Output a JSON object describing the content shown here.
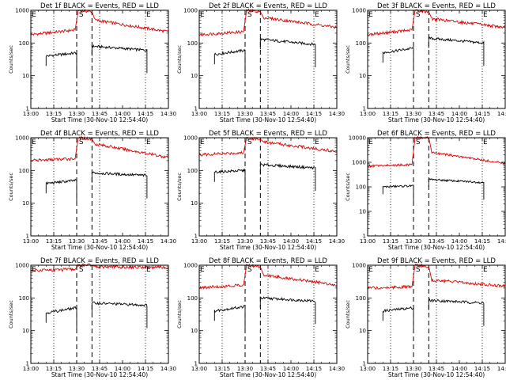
{
  "chart_data": {
    "type": "line",
    "yscale": "log",
    "ylim": [
      1,
      1000
    ],
    "y_ticks": [
      1,
      10,
      100,
      1000
    ],
    "y_tick_labels": [
      "1",
      "10",
      "100",
      "1000"
    ],
    "y_tick_labels_big": [
      "1",
      "10",
      "100",
      "1000",
      "10000"
    ],
    "xlim": [
      "13:00",
      "14:30"
    ],
    "x_ticks": [
      "13:00",
      "13:15",
      "13:30",
      "13:45",
      "14:00",
      "14:15",
      "14:30"
    ],
    "xlabel": "Start Time (30-Nov-10 12:54:40)",
    "ylabel": "Counts/sec",
    "markers": [
      {
        "label": "E",
        "time": "13:00"
      },
      {
        "label": "S",
        "time": "13:31"
      },
      {
        "label": "E",
        "time": "14:15"
      }
    ],
    "dashed_lines": [
      "13:30",
      "13:40"
    ],
    "dotted_lines": [
      "13:15",
      "13:45",
      "14:15"
    ],
    "series_colors": {
      "events": "#000000",
      "lld": "#dd0000"
    },
    "panels": [
      {
        "title": "Det 1f BLACK = Events, RED = LLD",
        "events": {
          "segments": [
            {
              "t": [
                "13:10",
                "13:30"
              ],
              "v": [
                40,
                50
              ]
            },
            {
              "t": [
                "13:40",
                "14:16"
              ],
              "v": [
                80,
                60
              ]
            }
          ]
        },
        "lld": {
          "points": [
            {
              "t": "13:00",
              "v": 180
            },
            {
              "t": "13:29",
              "v": 250
            },
            {
              "t": "13:31",
              "v": 1000
            },
            {
              "t": "13:40",
              "v": 900
            },
            {
              "t": "13:42",
              "v": 500
            },
            {
              "t": "14:30",
              "v": 220
            }
          ]
        }
      },
      {
        "title": "Det 2f BLACK = Events, RED = LLD",
        "events": {
          "segments": [
            {
              "t": [
                "13:10",
                "13:30"
              ],
              "v": [
                45,
                60
              ]
            },
            {
              "t": [
                "13:40",
                "14:16"
              ],
              "v": [
                130,
                90
              ]
            }
          ]
        },
        "lld": {
          "points": [
            {
              "t": "13:00",
              "v": 180
            },
            {
              "t": "13:29",
              "v": 220
            },
            {
              "t": "13:31",
              "v": 1000
            },
            {
              "t": "13:40",
              "v": 900
            },
            {
              "t": "13:42",
              "v": 600
            },
            {
              "t": "14:30",
              "v": 300
            }
          ]
        }
      },
      {
        "title": "Det 3f BLACK = Events, RED = LLD",
        "events": {
          "segments": [
            {
              "t": [
                "13:10",
                "13:30"
              ],
              "v": [
                50,
                70
              ]
            },
            {
              "t": [
                "13:40",
                "14:16"
              ],
              "v": [
                140,
                100
              ]
            }
          ]
        },
        "lld": {
          "points": [
            {
              "t": "13:00",
              "v": 180
            },
            {
              "t": "13:29",
              "v": 250
            },
            {
              "t": "13:31",
              "v": 1000
            },
            {
              "t": "13:40",
              "v": 900
            },
            {
              "t": "13:42",
              "v": 550
            },
            {
              "t": "14:30",
              "v": 300
            }
          ]
        }
      },
      {
        "title": "Det 4f BLACK = Events, RED = LLD",
        "events": {
          "segments": [
            {
              "t": [
                "13:10",
                "13:30"
              ],
              "v": [
                40,
                50
              ]
            },
            {
              "t": [
                "13:40",
                "14:16"
              ],
              "v": [
                85,
                70
              ]
            }
          ]
        },
        "lld": {
          "points": [
            {
              "t": "13:00",
              "v": 200
            },
            {
              "t": "13:29",
              "v": 230
            },
            {
              "t": "13:31",
              "v": 1000
            },
            {
              "t": "13:40",
              "v": 900
            },
            {
              "t": "13:42",
              "v": 650
            },
            {
              "t": "14:30",
              "v": 250
            }
          ]
        }
      },
      {
        "title": "Det 5f BLACK = Events, RED = LLD",
        "events": {
          "segments": [
            {
              "t": [
                "13:10",
                "13:30"
              ],
              "v": [
                90,
                100
              ]
            },
            {
              "t": [
                "13:40",
                "14:16"
              ],
              "v": [
                150,
                120
              ]
            }
          ]
        },
        "lld": {
          "points": [
            {
              "t": "13:00",
              "v": 300
            },
            {
              "t": "13:29",
              "v": 350
            },
            {
              "t": "13:31",
              "v": 1000
            },
            {
              "t": "13:40",
              "v": 900
            },
            {
              "t": "13:42",
              "v": 750
            },
            {
              "t": "14:30",
              "v": 380
            }
          ]
        }
      },
      {
        "title": "Det 6f BLACK = Events, RED = LLD",
        "events": {
          "segments": [
            {
              "t": [
                "13:10",
                "13:30"
              ],
              "v": [
                100,
                110
              ]
            },
            {
              "t": [
                "13:40",
                "14:16"
              ],
              "v": [
                200,
                150
              ]
            }
          ]
        },
        "lld": {
          "points": [
            {
              "t": "13:00",
              "v": 700
            },
            {
              "t": "13:29",
              "v": 800
            },
            {
              "t": "13:31",
              "v": 10000
            },
            {
              "t": "13:40",
              "v": 10000
            },
            {
              "t": "13:42",
              "v": 2500
            },
            {
              "t": "14:30",
              "v": 900
            }
          ]
        }
      },
      {
        "title": "Det 7f BLACK = Events, RED = LLD",
        "events": {
          "segments": [
            {
              "t": [
                "13:10",
                "13:30"
              ],
              "v": [
                35,
                50
              ]
            },
            {
              "t": [
                "13:40",
                "14:16"
              ],
              "v": [
                70,
                60
              ]
            }
          ]
        },
        "lld": {
          "points": [
            {
              "t": "13:00",
              "v": 700
            },
            {
              "t": "13:29",
              "v": 750
            },
            {
              "t": "13:31",
              "v": 1000
            },
            {
              "t": "13:40",
              "v": 1000
            },
            {
              "t": "13:42",
              "v": 900
            },
            {
              "t": "14:30",
              "v": 850
            }
          ]
        }
      },
      {
        "title": "Det 8f BLACK = Events, RED = LLD",
        "events": {
          "segments": [
            {
              "t": [
                "13:10",
                "13:30"
              ],
              "v": [
                40,
                55
              ]
            },
            {
              "t": [
                "13:40",
                "14:16"
              ],
              "v": [
                100,
                80
              ]
            }
          ]
        },
        "lld": {
          "points": [
            {
              "t": "13:00",
              "v": 200
            },
            {
              "t": "13:29",
              "v": 250
            },
            {
              "t": "13:31",
              "v": 1000
            },
            {
              "t": "13:40",
              "v": 900
            },
            {
              "t": "13:42",
              "v": 500
            },
            {
              "t": "14:30",
              "v": 250
            }
          ]
        }
      },
      {
        "title": "Det 9f BLACK = Events, RED = LLD",
        "events": {
          "segments": [
            {
              "t": [
                "13:10",
                "13:30"
              ],
              "v": [
                40,
                50
              ]
            },
            {
              "t": [
                "13:40",
                "14:16"
              ],
              "v": [
                85,
                70
              ]
            }
          ]
        },
        "lld": {
          "points": [
            {
              "t": "13:00",
              "v": 200
            },
            {
              "t": "13:29",
              "v": 220
            },
            {
              "t": "13:31",
              "v": 1000
            },
            {
              "t": "13:40",
              "v": 900
            },
            {
              "t": "13:42",
              "v": 350
            },
            {
              "t": "14:30",
              "v": 230
            }
          ]
        }
      }
    ]
  }
}
